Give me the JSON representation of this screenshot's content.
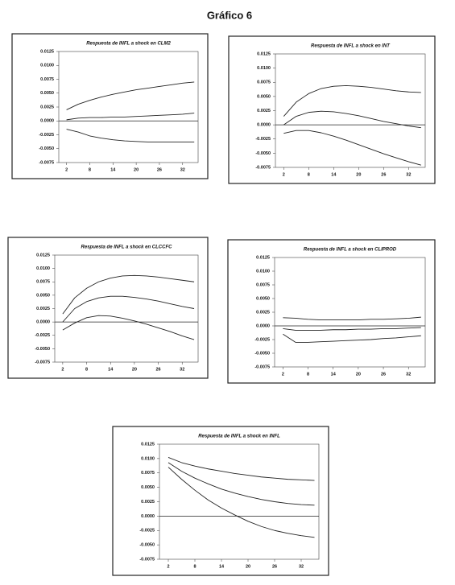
{
  "title": "Gráfico 6",
  "chart_data": [
    {
      "type": "line",
      "title": "Respuesta de  INFL a shock en  CLM2",
      "x": [
        2,
        5,
        8,
        11,
        14,
        17,
        20,
        23,
        26,
        29,
        32,
        35
      ],
      "xlim": [
        0,
        36
      ],
      "xticks": [
        2,
        8,
        14,
        20,
        26,
        32
      ],
      "ylim": [
        -0.0075,
        0.0125
      ],
      "yticks": [
        {
          "value": 0.0125,
          "label": "0.0125"
        },
        {
          "value": 0.01,
          "label": "0.0100"
        },
        {
          "value": 0.0075,
          "label": "0.0075"
        },
        {
          "value": 0.005,
          "label": "0.0050"
        },
        {
          "value": 0.0025,
          "label": "0.0025"
        },
        {
          "value": 0,
          "label": "0.0000"
        },
        {
          "value": -0.0025,
          "label": "-0.0025"
        },
        {
          "value": -0.005,
          "label": "-0.0050"
        },
        {
          "value": -0.0075,
          "label": "-0.0075"
        }
      ],
      "series": [
        {
          "color": "#222",
          "values": [
            0.002,
            0.003,
            0.0037,
            0.0043,
            0.0048,
            0.0052,
            0.0056,
            0.0059,
            0.0062,
            0.0065,
            0.0068,
            0.007
          ]
        },
        {
          "color": "#222",
          "values": [
            0.0002,
            0.0005,
            0.0006,
            0.0006,
            0.0007,
            0.0007,
            0.0008,
            0.0009,
            0.001,
            0.0011,
            0.0012,
            0.0014
          ]
        },
        {
          "color": "#222",
          "values": [
            -0.0015,
            -0.002,
            -0.0027,
            -0.0031,
            -0.0034,
            -0.0036,
            -0.0037,
            -0.0038,
            -0.0038,
            -0.0038,
            -0.0038,
            -0.0038
          ]
        }
      ]
    },
    {
      "type": "line",
      "title": "Respuesta de  INFL a shock en  INT",
      "x": [
        2,
        5,
        8,
        11,
        14,
        17,
        20,
        23,
        26,
        29,
        32,
        35
      ],
      "xlim": [
        0,
        36
      ],
      "xticks": [
        2,
        8,
        14,
        20,
        26,
        32
      ],
      "ylim": [
        -0.0075,
        0.0125
      ],
      "yticks": [
        {
          "value": 0.0125,
          "label": "0.0125"
        },
        {
          "value": 0.01,
          "label": "0.0100"
        },
        {
          "value": 0.0075,
          "label": "0.0075"
        },
        {
          "value": 0.005,
          "label": "0.0050"
        },
        {
          "value": 0.0025,
          "label": "0.0025"
        },
        {
          "value": 0,
          "label": "0.0000"
        },
        {
          "value": -0.0025,
          "label": "-0.0025"
        },
        {
          "value": -0.005,
          "label": "-0.0050"
        },
        {
          "value": -0.0075,
          "label": "-0.0075"
        }
      ],
      "series": [
        {
          "color": "#222",
          "values": [
            0.0015,
            0.004,
            0.0055,
            0.0064,
            0.0068,
            0.0069,
            0.0068,
            0.0066,
            0.0063,
            0.006,
            0.0058,
            0.0057
          ]
        },
        {
          "color": "#222",
          "values": [
            0.0,
            0.0015,
            0.0022,
            0.0024,
            0.0023,
            0.002,
            0.0016,
            0.0011,
            0.0006,
            0.0002,
            -0.0002,
            -0.0005
          ]
        },
        {
          "color": "#222",
          "values": [
            -0.0015,
            -0.001,
            -0.001,
            -0.0014,
            -0.002,
            -0.0027,
            -0.0035,
            -0.0043,
            -0.0051,
            -0.0058,
            -0.0065,
            -0.0071
          ]
        }
      ]
    },
    {
      "type": "line",
      "title": "Respuesta de  INFL a shock en  CLCCFC",
      "x": [
        2,
        5,
        8,
        11,
        14,
        17,
        20,
        23,
        26,
        29,
        32,
        35
      ],
      "xlim": [
        0,
        36
      ],
      "xticks": [
        2,
        8,
        14,
        20,
        26,
        32
      ],
      "ylim": [
        -0.0075,
        0.0125
      ],
      "yticks": [
        {
          "value": 0.0125,
          "label": "0.0125"
        },
        {
          "value": 0.01,
          "label": "0.0100"
        },
        {
          "value": 0.0075,
          "label": "0.0075"
        },
        {
          "value": 0.005,
          "label": "0.0050"
        },
        {
          "value": 0.0025,
          "label": "0.0025"
        },
        {
          "value": 0,
          "label": "0.0000"
        },
        {
          "value": -0.0025,
          "label": "-0.0025"
        },
        {
          "value": -0.005,
          "label": "-0.0050"
        },
        {
          "value": -0.0075,
          "label": "-0.0075"
        }
      ],
      "series": [
        {
          "color": "#222",
          "values": [
            0.0015,
            0.0045,
            0.0063,
            0.0075,
            0.0082,
            0.0086,
            0.0087,
            0.0086,
            0.0084,
            0.0081,
            0.0078,
            0.0075
          ]
        },
        {
          "color": "#222",
          "values": [
            0.0,
            0.0025,
            0.0038,
            0.0045,
            0.0048,
            0.0048,
            0.0046,
            0.0043,
            0.0039,
            0.0034,
            0.0029,
            0.0025
          ]
        },
        {
          "color": "#222",
          "values": [
            -0.0015,
            -0.0002,
            0.0008,
            0.0012,
            0.0011,
            0.0007,
            0.0002,
            -0.0004,
            -0.0011,
            -0.0018,
            -0.0026,
            -0.0033
          ]
        }
      ]
    },
    {
      "type": "line",
      "title": "Respuesta de  INFL a shock en  CLIPROD",
      "x": [
        2,
        5,
        8,
        11,
        14,
        17,
        20,
        23,
        26,
        29,
        32,
        35
      ],
      "xlim": [
        0,
        36
      ],
      "xticks": [
        2,
        8,
        14,
        20,
        26,
        32
      ],
      "ylim": [
        -0.0075,
        0.0125
      ],
      "yticks": [
        {
          "value": 0.0125,
          "label": "0.0125"
        },
        {
          "value": 0.01,
          "label": "0.0100"
        },
        {
          "value": 0.0075,
          "label": "0.0075"
        },
        {
          "value": 0.005,
          "label": "0.0050"
        },
        {
          "value": 0.0025,
          "label": "0.0025"
        },
        {
          "value": 0,
          "label": "0.0000"
        },
        {
          "value": -0.0025,
          "label": "-0.0025"
        },
        {
          "value": -0.005,
          "label": "-0.0050"
        },
        {
          "value": -0.0075,
          "label": "-0.0075"
        }
      ],
      "series": [
        {
          "color": "#222",
          "values": [
            0.0015,
            0.0014,
            0.0012,
            0.0011,
            0.0011,
            0.0011,
            0.0011,
            0.0012,
            0.0012,
            0.0013,
            0.0014,
            0.0016
          ]
        },
        {
          "color": "#222",
          "values": [
            -0.0005,
            -0.0008,
            -0.0008,
            -0.0008,
            -0.0007,
            -0.0007,
            -0.0006,
            -0.0006,
            -0.0005,
            -0.0005,
            -0.0004,
            -0.0003
          ]
        },
        {
          "color": "#222",
          "values": [
            -0.0015,
            -0.003,
            -0.003,
            -0.0029,
            -0.0028,
            -0.0027,
            -0.0026,
            -0.0025,
            -0.0023,
            -0.0022,
            -0.002,
            -0.0018
          ]
        }
      ]
    },
    {
      "type": "line",
      "title": "Respuesta de  INFL a shock en  INFL",
      "x": [
        2,
        5,
        8,
        11,
        14,
        17,
        20,
        23,
        26,
        29,
        32,
        35
      ],
      "xlim": [
        0,
        36
      ],
      "xticks": [
        2,
        8,
        14,
        20,
        26,
        32
      ],
      "ylim": [
        -0.0075,
        0.0125
      ],
      "yticks": [
        {
          "value": 0.0125,
          "label": "0.0125"
        },
        {
          "value": 0.01,
          "label": "0.0100"
        },
        {
          "value": 0.0075,
          "label": "0.0075"
        },
        {
          "value": 0.005,
          "label": "0.0050"
        },
        {
          "value": 0.0025,
          "label": "0.0025"
        },
        {
          "value": 0,
          "label": "0.0000"
        },
        {
          "value": -0.0025,
          "label": "-0.0025"
        },
        {
          "value": -0.005,
          "label": "-0.0050"
        },
        {
          "value": -0.0075,
          "label": "-0.0075"
        }
      ],
      "series": [
        {
          "color": "#222",
          "values": [
            0.0102,
            0.0093,
            0.0087,
            0.0082,
            0.0078,
            0.0074,
            0.0071,
            0.0068,
            0.0066,
            0.0064,
            0.0063,
            0.0062
          ]
        },
        {
          "color": "#222",
          "values": [
            0.0093,
            0.0078,
            0.0066,
            0.0056,
            0.0047,
            0.004,
            0.0034,
            0.0029,
            0.0025,
            0.0022,
            0.002,
            0.0019
          ]
        },
        {
          "color": "#222",
          "values": [
            0.0085,
            0.0064,
            0.0045,
            0.0028,
            0.0014,
            0.0002,
            -0.0009,
            -0.0018,
            -0.0025,
            -0.003,
            -0.0034,
            -0.0037
          ]
        }
      ]
    }
  ]
}
